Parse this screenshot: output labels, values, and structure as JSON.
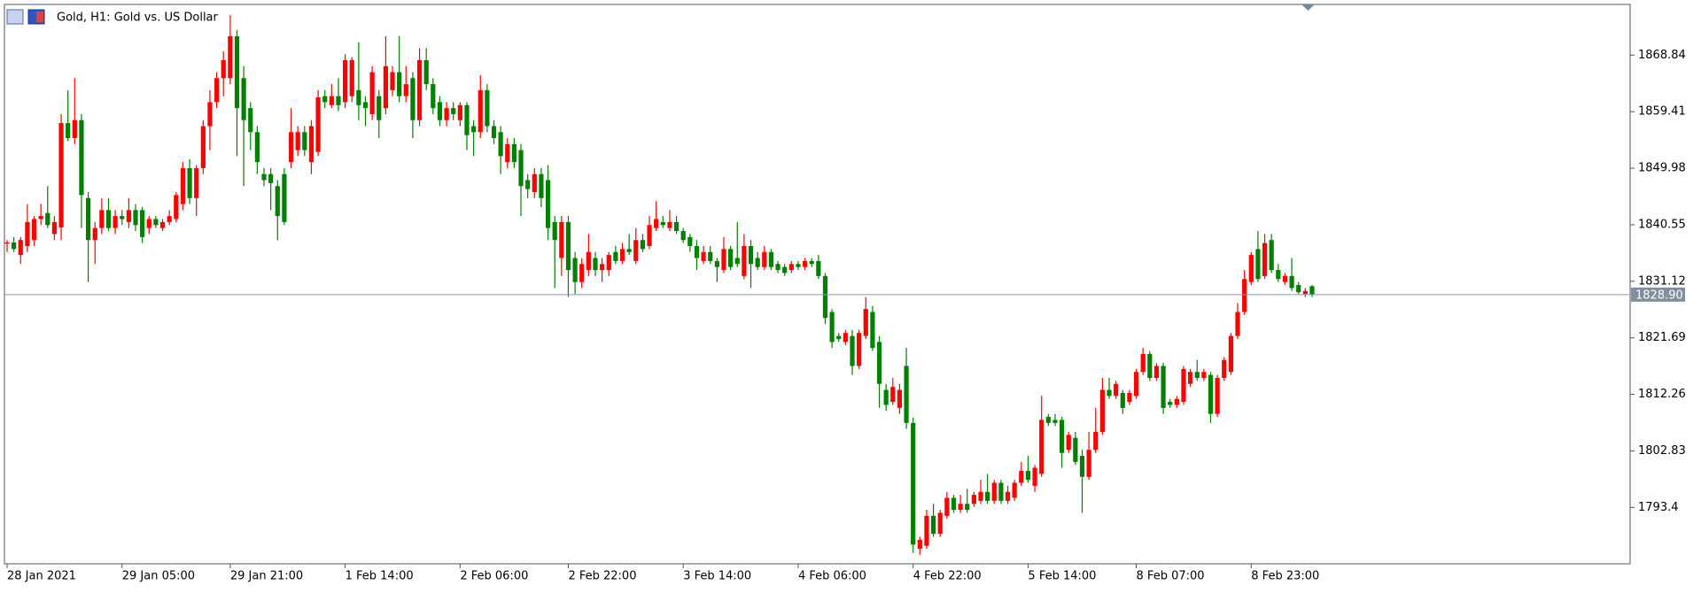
{
  "chart_data": {
    "type": "candlestick",
    "title": "Gold, H1:  Gold vs. US Dollar",
    "up_color": "#ff0000",
    "down_color": "#008000",
    "grid": false,
    "ylim": [
      1784.0,
      1877.3
    ],
    "yticks": [
      1793.4,
      1802.83,
      1812.26,
      1821.69,
      1831.12,
      1840.55,
      1849.98,
      1859.41,
      1868.84
    ],
    "current_price": {
      "value": 1828.9,
      "label": "1828.90"
    },
    "categories": [
      "28 Jan 2021",
      null,
      null,
      null,
      null,
      null,
      null,
      null,
      null,
      null,
      null,
      null,
      null,
      null,
      null,
      null,
      null,
      "29 Jan 05:00",
      null,
      null,
      null,
      null,
      null,
      null,
      null,
      null,
      null,
      null,
      null,
      null,
      null,
      null,
      null,
      "29 Jan 21:00",
      null,
      null,
      null,
      null,
      null,
      null,
      null,
      null,
      null,
      null,
      null,
      null,
      null,
      null,
      null,
      null,
      "1 Feb 14:00",
      null,
      null,
      null,
      null,
      null,
      null,
      null,
      null,
      null,
      null,
      null,
      null,
      null,
      null,
      null,
      null,
      "2 Feb 06:00",
      null,
      null,
      null,
      null,
      null,
      null,
      null,
      null,
      null,
      null,
      null,
      null,
      null,
      null,
      null,
      "2 Feb 22:00",
      null,
      null,
      null,
      null,
      null,
      null,
      null,
      null,
      null,
      null,
      null,
      null,
      null,
      null,
      null,
      null,
      "3 Feb 14:00",
      null,
      null,
      null,
      null,
      null,
      null,
      null,
      null,
      null,
      null,
      null,
      null,
      null,
      null,
      null,
      null,
      "4 Feb 06:00",
      null,
      null,
      null,
      null,
      null,
      null,
      null,
      null,
      null,
      null,
      null,
      null,
      null,
      null,
      null,
      null,
      "4 Feb 22:00",
      null,
      null,
      null,
      null,
      null,
      null,
      null,
      null,
      null,
      null,
      null,
      null,
      null,
      null,
      null,
      null,
      "5 Feb 14:00",
      null,
      null,
      null,
      null,
      null,
      null,
      null,
      null,
      null,
      null,
      null,
      null,
      null,
      null,
      null,
      "8 Feb 07:00",
      null,
      null,
      null,
      null,
      null,
      null,
      null,
      null,
      null,
      null,
      null,
      null,
      null,
      null,
      null,
      null,
      "8 Feb 23:00",
      null,
      null,
      null,
      null,
      null,
      null,
      null,
      null,
      null
    ],
    "candles": [
      [
        1837.4,
        1838,
        1836,
        1837.6
      ],
      [
        1837.6,
        1838.5,
        1836,
        1836.5
      ],
      [
        1835.5,
        1838.5,
        1834,
        1838
      ],
      [
        1837,
        1844,
        1836,
        1841
      ],
      [
        1838,
        1842,
        1837,
        1841.5
      ],
      [
        1841.5,
        1844,
        1840.5,
        1842
      ],
      [
        1842.5,
        1847,
        1840,
        1840.5
      ],
      [
        1839,
        1842,
        1838,
        1841
      ],
      [
        1840.1,
        1859,
        1838,
        1857.5
      ],
      [
        1857.5,
        1863,
        1854.5,
        1855
      ],
      [
        1855,
        1865,
        1854,
        1858
      ],
      [
        1858,
        1859,
        1840,
        1845.5
      ],
      [
        1845,
        1846,
        1831,
        1838
      ],
      [
        1838,
        1841,
        1834,
        1840
      ],
      [
        1840,
        1845,
        1839,
        1843
      ],
      [
        1843,
        1845,
        1839.5,
        1840
      ],
      [
        1840,
        1843,
        1839,
        1842
      ],
      [
        1842,
        1843,
        1840.5,
        1841.5
      ],
      [
        1841,
        1845,
        1840,
        1843
      ],
      [
        1843,
        1844,
        1839.5,
        1840.5
      ],
      [
        1843,
        1843.5,
        1837.5,
        1838.5
      ],
      [
        1840,
        1842,
        1839,
        1841.5
      ],
      [
        1841.5,
        1842,
        1840,
        1840.5
      ],
      [
        1840,
        1841.5,
        1839.5,
        1841
      ],
      [
        1841,
        1843,
        1840.5,
        1842
      ],
      [
        1841.5,
        1846,
        1841,
        1845.5
      ],
      [
        1844,
        1851,
        1843,
        1850
      ],
      [
        1850,
        1851.5,
        1844,
        1845
      ],
      [
        1845,
        1850.5,
        1842,
        1850
      ],
      [
        1850,
        1858,
        1849,
        1857
      ],
      [
        1857,
        1863,
        1853,
        1861
      ],
      [
        1861,
        1866,
        1860,
        1865
      ],
      [
        1865,
        1869.5,
        1862,
        1868
      ],
      [
        1865,
        1875.5,
        1864,
        1872
      ],
      [
        1872,
        1873,
        1852,
        1860
      ],
      [
        1865,
        1867,
        1847,
        1858
      ],
      [
        1860,
        1861,
        1853,
        1856
      ],
      [
        1856,
        1857,
        1849,
        1851
      ],
      [
        1849,
        1850,
        1847,
        1848
      ],
      [
        1849,
        1850,
        1843,
        1847.5
      ],
      [
        1847,
        1848,
        1838,
        1842
      ],
      [
        1849,
        1850,
        1840.5,
        1841
      ],
      [
        1851,
        1860,
        1850,
        1856
      ],
      [
        1853,
        1857,
        1852,
        1856
      ],
      [
        1856,
        1857,
        1852,
        1853
      ],
      [
        1851,
        1858,
        1849,
        1857
      ],
      [
        1852.7,
        1863,
        1852,
        1861.8
      ],
      [
        1862,
        1863,
        1860,
        1861
      ],
      [
        1860.5,
        1864,
        1860,
        1862
      ],
      [
        1862,
        1865,
        1859.5,
        1860.5
      ],
      [
        1861,
        1869,
        1860,
        1868
      ],
      [
        1862,
        1868.5,
        1861,
        1868
      ],
      [
        1863,
        1871,
        1858,
        1860.5
      ],
      [
        1861,
        1862,
        1857,
        1860
      ],
      [
        1859,
        1867,
        1858,
        1866
      ],
      [
        1862,
        1863,
        1855,
        1858
      ],
      [
        1860,
        1872,
        1859,
        1867
      ],
      [
        1863,
        1867,
        1862,
        1866
      ],
      [
        1866,
        1872,
        1861,
        1862
      ],
      [
        1862,
        1867,
        1861,
        1864
      ],
      [
        1865,
        1866,
        1855,
        1858
      ],
      [
        1858,
        1870,
        1857,
        1868
      ],
      [
        1868,
        1870,
        1863,
        1864
      ],
      [
        1864,
        1865,
        1859,
        1860
      ],
      [
        1861,
        1862,
        1857,
        1858
      ],
      [
        1858,
        1861,
        1857,
        1860
      ],
      [
        1860,
        1861,
        1858,
        1859
      ],
      [
        1858,
        1861,
        1857,
        1860.5
      ],
      [
        1860.5,
        1861,
        1853,
        1855.5
      ],
      [
        1857,
        1858,
        1852,
        1856
      ],
      [
        1856,
        1865.5,
        1855,
        1863
      ],
      [
        1863,
        1864,
        1856,
        1857
      ],
      [
        1857,
        1858,
        1854,
        1855
      ],
      [
        1856,
        1857,
        1849,
        1852
      ],
      [
        1851,
        1855,
        1850,
        1854
      ],
      [
        1854,
        1855,
        1850,
        1851
      ],
      [
        1853,
        1854,
        1842,
        1847
      ],
      [
        1848,
        1849,
        1845,
        1846.5
      ],
      [
        1846,
        1850,
        1845,
        1849
      ],
      [
        1849,
        1850,
        1843.5,
        1845
      ],
      [
        1848,
        1850.5,
        1838,
        1840
      ],
      [
        1841,
        1842,
        1830,
        1838
      ],
      [
        1835,
        1842,
        1832,
        1841
      ],
      [
        1841,
        1842,
        1828.5,
        1833
      ],
      [
        1835,
        1836,
        1829,
        1831
      ],
      [
        1831,
        1835,
        1830,
        1834
      ],
      [
        1833,
        1839,
        1832,
        1836
      ],
      [
        1835,
        1836,
        1832,
        1833
      ],
      [
        1833,
        1835,
        1831,
        1834
      ],
      [
        1833,
        1836,
        1832,
        1835.5
      ],
      [
        1836,
        1837,
        1834,
        1834.5
      ],
      [
        1834.5,
        1837.5,
        1834,
        1836.5
      ],
      [
        1836.5,
        1839,
        1835.5,
        1836
      ],
      [
        1834.5,
        1840,
        1834,
        1838
      ],
      [
        1838,
        1839,
        1836,
        1836.5
      ],
      [
        1837,
        1842,
        1836.5,
        1840.5
      ],
      [
        1840,
        1844.5,
        1839.5,
        1841.5
      ],
      [
        1841,
        1842,
        1840,
        1840.5
      ],
      [
        1840,
        1843,
        1839.5,
        1841
      ],
      [
        1841,
        1842,
        1839,
        1839.5
      ],
      [
        1839.5,
        1840,
        1837.5,
        1838
      ],
      [
        1838.5,
        1839,
        1836,
        1837
      ],
      [
        1837,
        1838,
        1833,
        1835
      ],
      [
        1834.5,
        1837,
        1834,
        1836
      ],
      [
        1836,
        1837,
        1834,
        1834.5
      ],
      [
        1834.5,
        1835,
        1831,
        1833.5
      ],
      [
        1833,
        1838.5,
        1832.5,
        1836.5
      ],
      [
        1836.5,
        1837,
        1833,
        1833.5
      ],
      [
        1835,
        1841,
        1833.5,
        1834
      ],
      [
        1832,
        1839,
        1831.5,
        1837
      ],
      [
        1837,
        1838,
        1830,
        1834
      ],
      [
        1835,
        1836,
        1833,
        1833.5
      ],
      [
        1833.5,
        1837,
        1833,
        1836
      ],
      [
        1836,
        1836.5,
        1833,
        1833.5
      ],
      [
        1834,
        1834.5,
        1832.5,
        1833
      ],
      [
        1833.5,
        1834,
        1832,
        1832.5
      ],
      [
        1833,
        1834.5,
        1832.5,
        1834
      ],
      [
        1834,
        1834.5,
        1833,
        1833.5
      ],
      [
        1833.5,
        1835,
        1833,
        1834.5
      ],
      [
        1834.5,
        1835,
        1833.5,
        1834
      ],
      [
        1834.5,
        1835.5,
        1831.5,
        1832
      ],
      [
        1832,
        1832.5,
        1824,
        1825
      ],
      [
        1826,
        1826.5,
        1820,
        1821
      ],
      [
        1822,
        1822.5,
        1821,
        1821.5
      ],
      [
        1821,
        1823,
        1820.5,
        1822.5
      ],
      [
        1822,
        1823,
        1815.5,
        1817
      ],
      [
        1817,
        1823,
        1816.5,
        1822.5
      ],
      [
        1822,
        1828.5,
        1821.5,
        1826.5
      ],
      [
        1826,
        1827,
        1819.5,
        1820
      ],
      [
        1821,
        1822,
        1810,
        1814
      ],
      [
        1813,
        1814,
        1809.5,
        1810.5
      ],
      [
        1811,
        1815,
        1810.5,
        1813.5
      ],
      [
        1810,
        1814,
        1809,
        1813
      ],
      [
        1817,
        1820,
        1806.5,
        1807.5
      ],
      [
        1807.5,
        1808.4,
        1785.8,
        1787.2
      ],
      [
        1786.5,
        1788.5,
        1785.5,
        1788
      ],
      [
        1787,
        1793,
        1786.5,
        1792
      ],
      [
        1792,
        1794,
        1788.5,
        1789
      ],
      [
        1789,
        1793,
        1788.5,
        1792.5
      ],
      [
        1792,
        1796,
        1791.5,
        1795
      ],
      [
        1795,
        1795.5,
        1792.5,
        1793
      ],
      [
        1793,
        1795.5,
        1792.5,
        1794
      ],
      [
        1794,
        1796.5,
        1792.5,
        1793
      ],
      [
        1794,
        1796,
        1793.5,
        1795.5
      ],
      [
        1794.5,
        1798,
        1794,
        1796
      ],
      [
        1796,
        1799,
        1794,
        1794.5
      ],
      [
        1794.5,
        1798,
        1794,
        1797.5
      ],
      [
        1797.5,
        1798,
        1794,
        1794.5
      ],
      [
        1794.5,
        1797,
        1794,
        1796
      ],
      [
        1795,
        1798,
        1794.5,
        1797.5
      ],
      [
        1797.5,
        1801,
        1797,
        1799.5
      ],
      [
        1799.5,
        1802,
        1797.5,
        1798
      ],
      [
        1797,
        1800.5,
        1796,
        1800
      ],
      [
        1799,
        1812,
        1798.5,
        1808
      ],
      [
        1808.5,
        1809,
        1807,
        1807.5
      ],
      [
        1808,
        1809,
        1807,
        1807.5
      ],
      [
        1808,
        1808.5,
        1800,
        1802.5
      ],
      [
        1803,
        1806,
        1802.5,
        1805.5
      ],
      [
        1805,
        1806,
        1800.5,
        1801
      ],
      [
        1802,
        1803,
        1792.5,
        1798.5
      ],
      [
        1798.5,
        1806,
        1798,
        1803
      ],
      [
        1803,
        1810,
        1802.5,
        1806
      ],
      [
        1806,
        1815,
        1805.5,
        1813
      ],
      [
        1813,
        1815,
        1811.5,
        1812
      ],
      [
        1812,
        1814.5,
        1811.5,
        1814
      ],
      [
        1812.5,
        1813,
        1809,
        1810
      ],
      [
        1811,
        1813,
        1810.5,
        1812.5
      ],
      [
        1812,
        1816.5,
        1811.5,
        1816
      ],
      [
        1816,
        1820,
        1815.5,
        1819
      ],
      [
        1819,
        1819.5,
        1814.5,
        1815
      ],
      [
        1815,
        1817.5,
        1814.5,
        1817
      ],
      [
        1817,
        1817.5,
        1809,
        1810
      ],
      [
        1811,
        1811.5,
        1810,
        1810.5
      ],
      [
        1810.5,
        1812,
        1810,
        1811.5
      ],
      [
        1811,
        1817,
        1810.5,
        1816.5
      ],
      [
        1814,
        1816.5,
        1813.5,
        1816
      ],
      [
        1816,
        1818,
        1814.5,
        1815
      ],
      [
        1815,
        1816.5,
        1814.5,
        1816
      ],
      [
        1815.5,
        1816,
        1807.5,
        1809
      ],
      [
        1809,
        1815.5,
        1808.5,
        1815
      ],
      [
        1815,
        1818.5,
        1814.5,
        1818
      ],
      [
        1816,
        1822.5,
        1815.5,
        1822
      ],
      [
        1822,
        1827.5,
        1821.5,
        1826
      ],
      [
        1826,
        1833,
        1825.5,
        1831.5
      ],
      [
        1831,
        1836,
        1830.5,
        1835.5
      ],
      [
        1836.5,
        1839.5,
        1831,
        1831.5
      ],
      [
        1832,
        1839,
        1831.5,
        1837.5
      ],
      [
        1838,
        1839,
        1832.5,
        1833
      ],
      [
        1833,
        1834,
        1831,
        1831.5
      ],
      [
        1831,
        1832.5,
        1830.5,
        1832
      ],
      [
        1832,
        1835,
        1829.5,
        1830
      ],
      [
        1830.5,
        1831,
        1829,
        1829.3
      ],
      [
        1829,
        1830,
        1828.5,
        1829.5
      ],
      [
        1830.3,
        1830.5,
        1828.5,
        1828.9
      ]
    ]
  }
}
